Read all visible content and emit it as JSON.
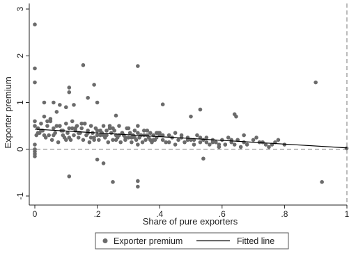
{
  "chart_data": {
    "type": "scatter",
    "xlabel": "Share of pure exporters",
    "ylabel": "Exporter premium",
    "xlim": [
      0,
      1
    ],
    "ylim": [
      -1,
      3
    ],
    "xticks": [
      0,
      0.2,
      0.4,
      0.6,
      0.8,
      1
    ],
    "xtick_labels": [
      "0",
      ".2",
      ".4",
      ".6",
      ".8",
      "1"
    ],
    "yticks": [
      -1,
      0,
      1,
      2,
      3
    ],
    "ytick_labels": [
      "-1",
      "0",
      "1",
      "2",
      "3"
    ],
    "reference_line_y": 0,
    "reference_line_x": 1,
    "grid": false,
    "legend_position": "bottom",
    "series": [
      {
        "name": "Exporter premium",
        "kind": "scatter",
        "color": "#6b6b6b",
        "x": [
          0,
          0,
          0,
          0,
          0,
          0.01,
          0.005,
          0.0,
          0.015,
          0.02,
          0.025,
          0.03,
          0.035,
          0.04,
          0.045,
          0.05,
          0.055,
          0.06,
          0.065,
          0.07,
          0.075,
          0.08,
          0.085,
          0.09,
          0.095,
          0.1,
          0.105,
          0.11,
          0.115,
          0.12,
          0.125,
          0.13,
          0.135,
          0.14,
          0.145,
          0.15,
          0.155,
          0.16,
          0.165,
          0.17,
          0.175,
          0.18,
          0.185,
          0.19,
          0.195,
          0.2,
          0.205,
          0.21,
          0.215,
          0.22,
          0.225,
          0.23,
          0.235,
          0.24,
          0.245,
          0.25,
          0.255,
          0.26,
          0.265,
          0.27,
          0.275,
          0.28,
          0.285,
          0.29,
          0.295,
          0.3,
          0.305,
          0.31,
          0.315,
          0.32,
          0.325,
          0.33,
          0.335,
          0.34,
          0.345,
          0.35,
          0.355,
          0.36,
          0.365,
          0.37,
          0.375,
          0.38,
          0.385,
          0.39,
          0.395,
          0.4,
          0.41,
          0.42,
          0.43,
          0.44,
          0.45,
          0.46,
          0.47,
          0.48,
          0.49,
          0.5,
          0.51,
          0.52,
          0.53,
          0.54,
          0.55,
          0.56,
          0.57,
          0.58,
          0.59,
          0.6,
          0.61,
          0.62,
          0.63,
          0.64,
          0.65,
          0.66,
          0.67,
          0.68,
          0.7,
          0.72,
          0.74,
          0.75,
          0.77,
          0.8,
          0.02,
          0.04,
          0.06,
          0.08,
          0.1,
          0.12,
          0.14,
          0.16,
          0.18,
          0.2,
          0.22,
          0.24,
          0.26,
          0.28,
          0.3,
          0.32,
          0.34,
          0.36,
          0.38,
          0.4,
          0.03,
          0.07,
          0.11,
          0.13,
          0.17,
          0.19,
          0.23,
          0.27,
          0.31,
          0.33,
          0.35,
          0.37,
          0.39,
          0.43,
          0.47,
          0.51,
          0.55,
          0.59,
          0.63,
          0.01,
          0.05,
          0.09,
          0.15,
          0.21,
          0.25,
          0.29,
          0.33,
          0.41,
          0.45,
          0.49,
          0.53,
          0.57,
          0.61,
          0.65,
          0.67,
          0.71,
          0.73,
          0.76,
          0.78,
          0.0,
          0.0,
          0.0,
          0.0,
          0.11,
          0.155,
          0.33,
          0.19,
          0.11,
          0.125,
          0.2,
          0.26,
          0.1,
          0.41,
          0.5,
          0.53,
          0.64,
          0.645,
          0.9,
          0.92,
          0.11,
          0.25,
          0.33,
          0.33,
          0.2,
          0.22,
          0.54,
          0.17,
          0.06,
          0.08,
          0.03,
          0.999
        ],
        "y": [
          2.67,
          1.73,
          1.43,
          0.6,
          0.5,
          0.45,
          0.3,
          0.1,
          0.35,
          0.55,
          0.4,
          0.7,
          0.25,
          0.5,
          0.3,
          0.6,
          0.2,
          0.45,
          0.35,
          0.8,
          0.15,
          0.5,
          0.4,
          0.3,
          0.25,
          0.55,
          0.35,
          0.45,
          0.2,
          0.6,
          0.3,
          0.4,
          0.5,
          0.25,
          0.35,
          0.45,
          0.2,
          0.55,
          0.3,
          0.4,
          0.15,
          0.5,
          0.35,
          0.25,
          0.45,
          0.3,
          0.2,
          0.4,
          0.35,
          0.5,
          0.25,
          0.3,
          0.15,
          0.45,
          0.35,
          0.2,
          0.4,
          0.3,
          0.25,
          0.5,
          0.15,
          0.35,
          0.3,
          0.2,
          0.45,
          0.25,
          0.35,
          0.15,
          0.3,
          0.4,
          0.2,
          0.35,
          0.25,
          0.3,
          0.15,
          0.4,
          0.2,
          0.3,
          0.25,
          0.35,
          0.15,
          0.3,
          0.2,
          0.25,
          0.35,
          0.3,
          0.2,
          0.15,
          0.3,
          0.25,
          0.1,
          0.2,
          0.3,
          0.15,
          0.25,
          0.2,
          0.1,
          0.3,
          0.15,
          0.2,
          0.25,
          0.1,
          0.2,
          0.15,
          0.05,
          0.2,
          0.1,
          0.25,
          0.15,
          0.1,
          0.2,
          0.05,
          0.15,
          0.1,
          0.2,
          0.15,
          0.1,
          0.05,
          0.15,
          0.1,
          0.4,
          0.6,
          0.3,
          0.5,
          0.2,
          0.45,
          0.35,
          0.55,
          0.25,
          0.4,
          0.3,
          0.5,
          0.2,
          0.35,
          0.45,
          0.25,
          0.3,
          0.4,
          0.2,
          0.35,
          0.3,
          0.5,
          0.25,
          0.45,
          0.35,
          0.2,
          0.4,
          0.3,
          0.25,
          0.1,
          0.3,
          0.2,
          0.35,
          0.15,
          0.25,
          0.2,
          0.15,
          0.1,
          0.2,
          0.35,
          0.65,
          0.4,
          0.55,
          0.3,
          0.45,
          0.25,
          0.5,
          0.3,
          0.35,
          0.2,
          0.25,
          0.15,
          0.1,
          0.2,
          0.3,
          0.25,
          0.15,
          0.1,
          0.2,
          -0.05,
          -0.15,
          0.0,
          -0.1,
          1.32,
          1.8,
          1.78,
          1.38,
          1.22,
          0.95,
          1.0,
          0.72,
          0.9,
          0.96,
          0.7,
          0.85,
          0.75,
          0.7,
          1.43,
          -0.7,
          -0.58,
          -0.7,
          -0.68,
          -0.8,
          -0.22,
          -0.3,
          -0.2,
          1.1,
          1.0,
          0.95,
          1.0,
          0.02
        ]
      },
      {
        "name": "Fitted line",
        "kind": "line",
        "color": "#000000",
        "x": [
          0,
          1
        ],
        "y": [
          0.43,
          0.03
        ]
      }
    ]
  }
}
